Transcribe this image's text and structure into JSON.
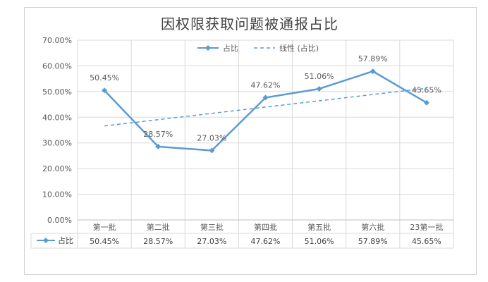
{
  "chart_data": {
    "type": "line",
    "title": "因权限获取问题被通报占比",
    "categories": [
      "第一批",
      "第二批",
      "第三批",
      "第四批",
      "第五批",
      "第六批",
      "23第一批"
    ],
    "series": [
      {
        "name": "占比",
        "values": [
          50.45,
          28.57,
          27.03,
          47.62,
          51.06,
          57.89,
          45.65
        ],
        "labels": [
          "50.45%",
          "28.57%",
          "27.03%",
          "47.62%",
          "51.06%",
          "57.89%",
          "45.65%"
        ]
      }
    ],
    "trendline": {
      "name": "线性 (占比)",
      "type": "linear",
      "start": 36.6,
      "end": 51.3
    },
    "ylim": [
      0,
      70
    ],
    "yticks": [
      "0.00%",
      "10.00%",
      "20.00%",
      "30.00%",
      "40.00%",
      "50.00%",
      "60.00%",
      "70.00%"
    ],
    "grid": true,
    "legend": "top-center",
    "data_table": true,
    "colors": {
      "series": "#5b9bd5",
      "axis_text": "#595959",
      "grid": "#d9d9d9"
    }
  }
}
